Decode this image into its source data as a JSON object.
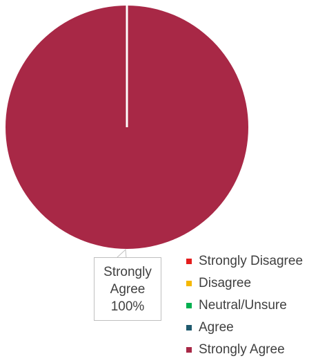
{
  "chart_data": {
    "type": "pie",
    "title": "",
    "categories": [
      "Strongly Disagree",
      "Disagree",
      "Neutral/Unsure",
      "Agree",
      "Strongly Agree"
    ],
    "values": [
      0,
      0,
      0,
      0,
      100
    ],
    "colors": [
      "#e41d1d",
      "#f5b800",
      "#00b050",
      "#1f5a6e",
      "#a82846"
    ],
    "data_labels": [
      {
        "category": "Strongly Agree",
        "line1": "Strongly",
        "line2": "Agree",
        "percent": "100%"
      }
    ],
    "legend_position": "bottom-right"
  }
}
